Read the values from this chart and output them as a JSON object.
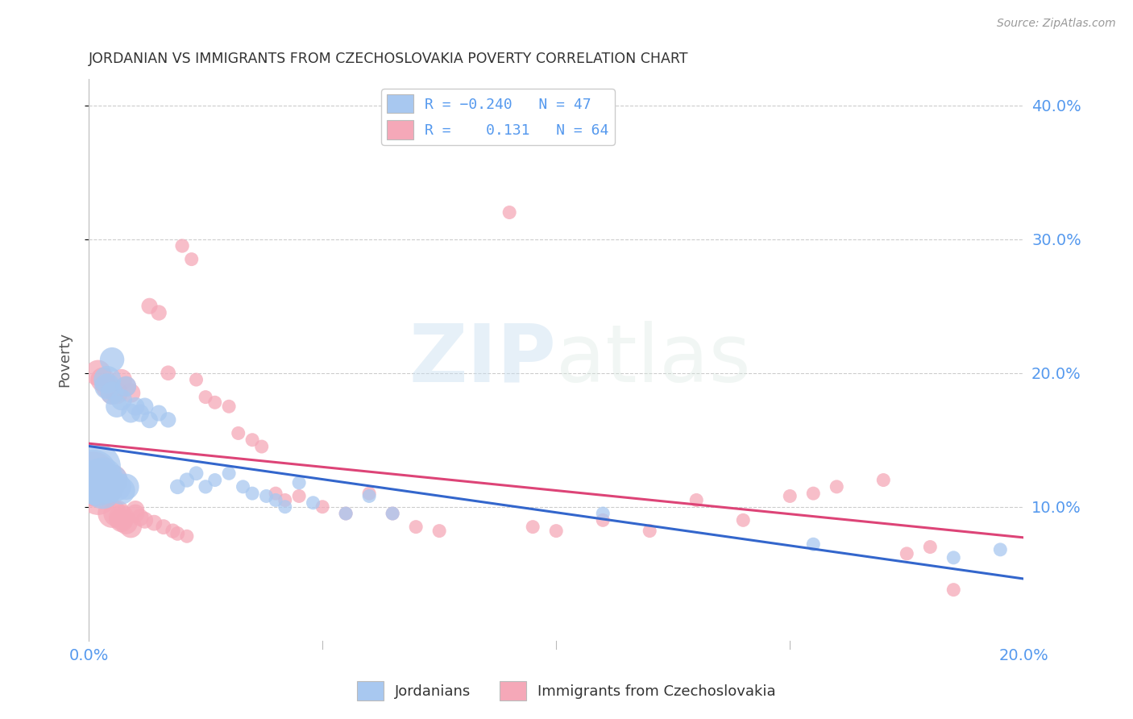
{
  "title": "JORDANIAN VS IMMIGRANTS FROM CZECHOSLOVAKIA POVERTY CORRELATION CHART",
  "source": "Source: ZipAtlas.com",
  "ylabel": "Poverty",
  "xlim": [
    0.0,
    0.2
  ],
  "ylim": [
    0.0,
    0.42
  ],
  "yticks": [
    0.1,
    0.2,
    0.3,
    0.4
  ],
  "ytick_labels": [
    "10.0%",
    "20.0%",
    "30.0%",
    "40.0%"
  ],
  "xticks": [
    0.0,
    0.05,
    0.1,
    0.15,
    0.2
  ],
  "xtick_labels": [
    "0.0%",
    "",
    "",
    "",
    "20.0%"
  ],
  "blue_R": -0.24,
  "blue_N": 47,
  "pink_R": 0.131,
  "pink_N": 64,
  "blue_color": "#a8c8f0",
  "pink_color": "#f5a8b8",
  "blue_line_color": "#3366cc",
  "pink_line_color": "#dd4477",
  "watermark_zip": "ZIP",
  "watermark_atlas": "atlas",
  "background_color": "#ffffff",
  "grid_color": "#cccccc",
  "axis_color": "#bbbbbb",
  "title_color": "#333333",
  "tick_label_color": "#5599ee",
  "legend_border_color": "#cccccc",
  "blue_scatter_x": [
    0.001,
    0.001,
    0.002,
    0.002,
    0.002,
    0.003,
    0.003,
    0.003,
    0.004,
    0.004,
    0.004,
    0.005,
    0.005,
    0.005,
    0.006,
    0.006,
    0.007,
    0.007,
    0.008,
    0.008,
    0.009,
    0.01,
    0.011,
    0.012,
    0.013,
    0.015,
    0.017,
    0.019,
    0.021,
    0.023,
    0.025,
    0.027,
    0.03,
    0.033,
    0.035,
    0.038,
    0.04,
    0.042,
    0.045,
    0.048,
    0.055,
    0.06,
    0.065,
    0.11,
    0.155,
    0.185,
    0.195
  ],
  "blue_scatter_y": [
    0.125,
    0.118,
    0.13,
    0.12,
    0.115,
    0.122,
    0.118,
    0.112,
    0.195,
    0.19,
    0.115,
    0.21,
    0.185,
    0.12,
    0.175,
    0.115,
    0.18,
    0.112,
    0.19,
    0.115,
    0.17,
    0.175,
    0.17,
    0.175,
    0.165,
    0.17,
    0.165,
    0.115,
    0.12,
    0.125,
    0.115,
    0.12,
    0.125,
    0.115,
    0.11,
    0.108,
    0.105,
    0.1,
    0.118,
    0.103,
    0.095,
    0.108,
    0.095,
    0.095,
    0.072,
    0.062,
    0.068
  ],
  "blue_scatter_size": [
    600,
    500,
    550,
    480,
    400,
    420,
    380,
    350,
    200,
    180,
    300,
    160,
    140,
    250,
    130,
    220,
    120,
    200,
    110,
    180,
    100,
    90,
    85,
    80,
    75,
    70,
    65,
    60,
    58,
    55,
    52,
    50,
    50,
    50,
    50,
    50,
    50,
    50,
    50,
    50,
    50,
    50,
    50,
    50,
    50,
    50,
    50
  ],
  "pink_scatter_x": [
    0.001,
    0.001,
    0.002,
    0.002,
    0.003,
    0.003,
    0.004,
    0.004,
    0.005,
    0.005,
    0.005,
    0.006,
    0.006,
    0.007,
    0.007,
    0.007,
    0.008,
    0.008,
    0.009,
    0.009,
    0.01,
    0.01,
    0.011,
    0.012,
    0.013,
    0.014,
    0.015,
    0.016,
    0.017,
    0.018,
    0.019,
    0.02,
    0.021,
    0.022,
    0.023,
    0.025,
    0.027,
    0.03,
    0.032,
    0.035,
    0.037,
    0.04,
    0.042,
    0.045,
    0.05,
    0.055,
    0.06,
    0.065,
    0.07,
    0.075,
    0.09,
    0.095,
    0.1,
    0.11,
    0.12,
    0.13,
    0.14,
    0.15,
    0.155,
    0.16,
    0.17,
    0.175,
    0.18,
    0.185
  ],
  "pink_scatter_y": [
    0.125,
    0.115,
    0.2,
    0.108,
    0.195,
    0.112,
    0.19,
    0.115,
    0.185,
    0.12,
    0.095,
    0.185,
    0.095,
    0.195,
    0.092,
    0.09,
    0.19,
    0.088,
    0.185,
    0.085,
    0.095,
    0.098,
    0.092,
    0.09,
    0.25,
    0.088,
    0.245,
    0.085,
    0.2,
    0.082,
    0.08,
    0.295,
    0.078,
    0.285,
    0.195,
    0.182,
    0.178,
    0.175,
    0.155,
    0.15,
    0.145,
    0.11,
    0.105,
    0.108,
    0.1,
    0.095,
    0.11,
    0.095,
    0.085,
    0.082,
    0.32,
    0.085,
    0.082,
    0.09,
    0.082,
    0.105,
    0.09,
    0.108,
    0.11,
    0.115,
    0.12,
    0.065,
    0.07,
    0.038
  ],
  "pink_scatter_size": [
    500,
    420,
    180,
    380,
    160,
    340,
    150,
    300,
    140,
    260,
    220,
    130,
    190,
    120,
    170,
    150,
    110,
    140,
    100,
    130,
    90,
    85,
    80,
    75,
    70,
    68,
    65,
    62,
    60,
    58,
    55,
    52,
    50,
    50,
    50,
    50,
    50,
    50,
    50,
    50,
    50,
    50,
    50,
    50,
    50,
    50,
    50,
    50,
    50,
    50,
    50,
    50,
    50,
    50,
    50,
    50,
    50,
    50,
    50,
    50,
    50,
    50,
    50,
    50
  ]
}
